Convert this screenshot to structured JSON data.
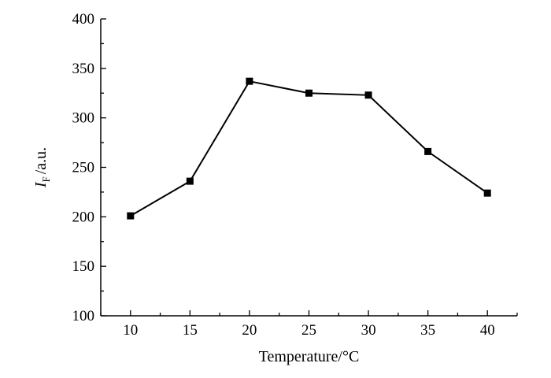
{
  "chart_data": {
    "type": "line",
    "x": [
      10,
      15,
      20,
      25,
      30,
      35,
      40
    ],
    "series": [
      {
        "values": [
          201,
          236,
          337,
          325,
          323,
          266,
          224
        ]
      }
    ],
    "xlabel": "Temperature/°C",
    "ylabel": {
      "main": "I",
      "subscript": "F",
      "suffix": "/a.u."
    },
    "xlim": [
      7.5,
      42.5
    ],
    "ylim": [
      100,
      400
    ],
    "xticks": [
      10,
      15,
      20,
      25,
      30,
      35,
      40
    ],
    "yticks": [
      100,
      150,
      200,
      250,
      300,
      350,
      400
    ],
    "marker": "square",
    "grid": false,
    "line_color": "#000000"
  }
}
